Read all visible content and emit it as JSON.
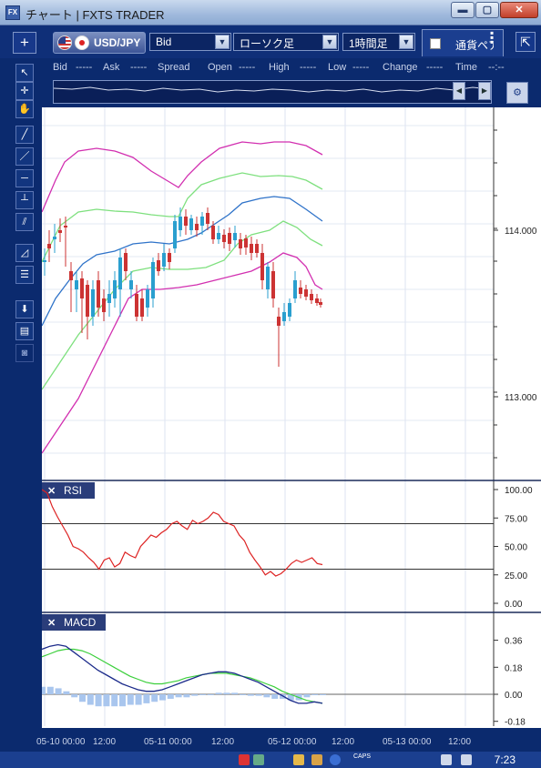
{
  "window": {
    "title": "チャート | FXTS TRADER",
    "app_icon": "FX",
    "min": "▬",
    "max": "▢",
    "close": "✕"
  },
  "toolbar": {
    "plus": "+",
    "symbol": "USD/JPY",
    "price_type": "Bid",
    "chart_type": "ローソク足",
    "timeframe": "1時間足",
    "currency_tab": "通貨ペア",
    "dropdown_arrow": "▼",
    "expand": "⇱"
  },
  "quote": {
    "bid_label": "Bid",
    "bid_value": "-----",
    "ask_label": "Ask",
    "ask_value": "-----",
    "spread_label": "Spread",
    "open_label": "Open",
    "open_value": "-----",
    "high_label": "High",
    "high_value": "-----",
    "low_label": "Low",
    "low_value": "-----",
    "change_label": "Change",
    "change_value": "-----",
    "time_label": "Time",
    "time_value": "--:--"
  },
  "tools": [
    "cursor-icon",
    "crosshair-icon",
    "hand-icon",
    "trendline-icon",
    "line-icon",
    "horizontal-line-icon",
    "vertical-line-icon",
    "channel-icon",
    "fibonacci-icon",
    "fib-retracement-icon",
    "arrow-down-icon",
    "list-icon",
    "camera-icon"
  ],
  "main_chart": {
    "type": "candlestick",
    "y_ticks": [
      "114.000",
      "113.000"
    ],
    "y_tick_values": [
      114.0,
      113.0
    ],
    "x_ticks": [
      "05-10 00:00",
      "12:00",
      "05-11 00:00",
      "12:00",
      "05-12 00:00",
      "12:00",
      "05-13 00:00",
      "12:00"
    ]
  },
  "rsi": {
    "title": "RSI",
    "close": "✕",
    "levels": [
      70,
      30
    ],
    "y_ticks": [
      "100.00",
      "75.00",
      "50.00",
      "25.00",
      "0.00"
    ],
    "values": [
      100,
      97,
      85,
      76,
      68,
      60,
      50,
      48,
      45,
      40,
      36,
      30,
      38,
      40,
      32,
      35,
      45,
      42,
      40,
      50,
      55,
      60,
      58,
      62,
      65,
      70,
      72,
      68,
      65,
      73,
      70,
      72,
      75,
      80,
      78,
      72,
      70,
      68,
      60,
      55,
      45,
      38,
      32,
      25,
      28,
      24,
      26,
      30,
      35,
      38,
      36,
      38,
      40,
      35,
      34
    ]
  },
  "macd": {
    "title": "MACD",
    "close": "✕",
    "y_ticks": [
      "0.36",
      "0.18",
      "0.00",
      "-0.18"
    ],
    "macd_line": [
      0.3,
      0.32,
      0.33,
      0.32,
      0.28,
      0.24,
      0.2,
      0.16,
      0.13,
      0.1,
      0.07,
      0.05,
      0.03,
      0.02,
      0.02,
      0.03,
      0.05,
      0.07,
      0.09,
      0.11,
      0.13,
      0.14,
      0.15,
      0.15,
      0.14,
      0.12,
      0.1,
      0.08,
      0.05,
      0.02,
      -0.01,
      -0.04,
      -0.06,
      -0.06,
      -0.05,
      -0.06
    ],
    "signal_line": [
      0.25,
      0.27,
      0.29,
      0.3,
      0.3,
      0.29,
      0.27,
      0.24,
      0.21,
      0.18,
      0.15,
      0.12,
      0.1,
      0.08,
      0.07,
      0.07,
      0.08,
      0.09,
      0.11,
      0.12,
      0.13,
      0.14,
      0.14,
      0.14,
      0.13,
      0.12,
      0.11,
      0.09,
      0.07,
      0.05,
      0.02,
      0.0,
      -0.02,
      -0.04,
      -0.05,
      -0.06
    ],
    "histogram": [
      0.05,
      0.05,
      0.04,
      0.02,
      -0.02,
      -0.05,
      -0.07,
      -0.08,
      -0.08,
      -0.08,
      -0.08,
      -0.07,
      -0.07,
      -0.06,
      -0.05,
      -0.04,
      -0.03,
      -0.02,
      -0.02,
      -0.01,
      0.0,
      0.0,
      0.01,
      0.01,
      0.01,
      0.0,
      -0.01,
      -0.01,
      -0.02,
      -0.03,
      -0.03,
      -0.04,
      -0.04,
      -0.02,
      0.0,
      0.0
    ]
  },
  "taskbar": {
    "clock": "7:23",
    "caps": "CAPS"
  }
}
